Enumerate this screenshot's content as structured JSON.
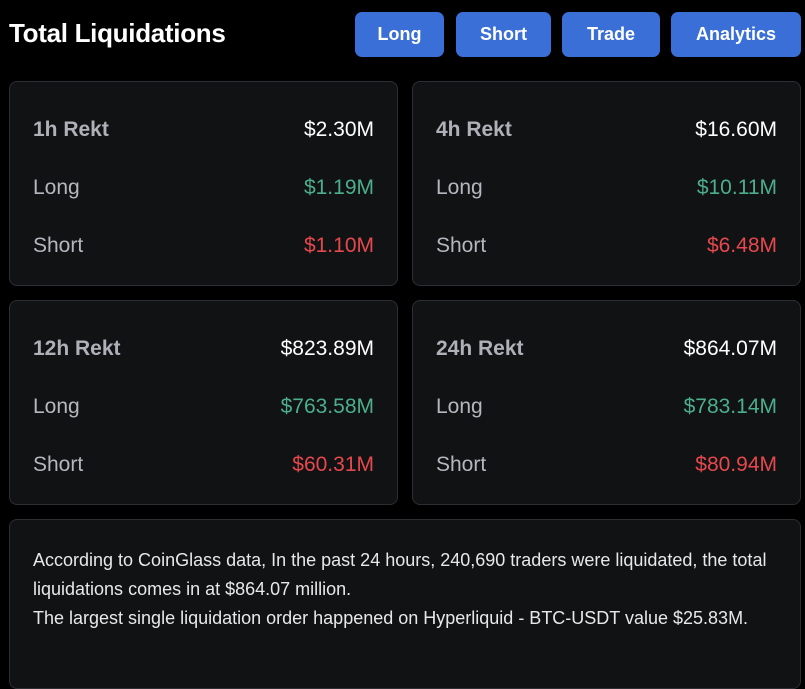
{
  "header": {
    "title": "Total Liquidations",
    "buttons": {
      "long": "Long",
      "short": "Short",
      "trade": "Trade",
      "analytics": "Analytics"
    }
  },
  "cards": [
    {
      "rekt_label": "1h Rekt",
      "rekt_value": "$2.30M",
      "long_label": "Long",
      "long_value": "$1.19M",
      "short_label": "Short",
      "short_value": "$1.10M"
    },
    {
      "rekt_label": "4h Rekt",
      "rekt_value": "$16.60M",
      "long_label": "Long",
      "long_value": "$10.11M",
      "short_label": "Short",
      "short_value": "$6.48M"
    },
    {
      "rekt_label": "12h Rekt",
      "rekt_value": "$823.89M",
      "long_label": "Long",
      "long_value": "$763.58M",
      "short_label": "Short",
      "short_value": "$60.31M"
    },
    {
      "rekt_label": "24h Rekt",
      "rekt_value": "$864.07M",
      "long_label": "Long",
      "long_value": "$783.14M",
      "short_label": "Short",
      "short_value": "$80.94M"
    }
  ],
  "summary": {
    "line1": "According to CoinGlass data, In the past 24 hours, 240,690 traders were liquidated, the total liquidations comes in at $864.07 million.",
    "line2": "The largest single liquidation order happened on Hyperliquid - BTC-USDT value $25.83M."
  },
  "colors": {
    "background": "#000000",
    "card": "#111214",
    "button": "#3a6fd8",
    "long_green": "#4cae8a",
    "short_red": "#e5484d"
  }
}
